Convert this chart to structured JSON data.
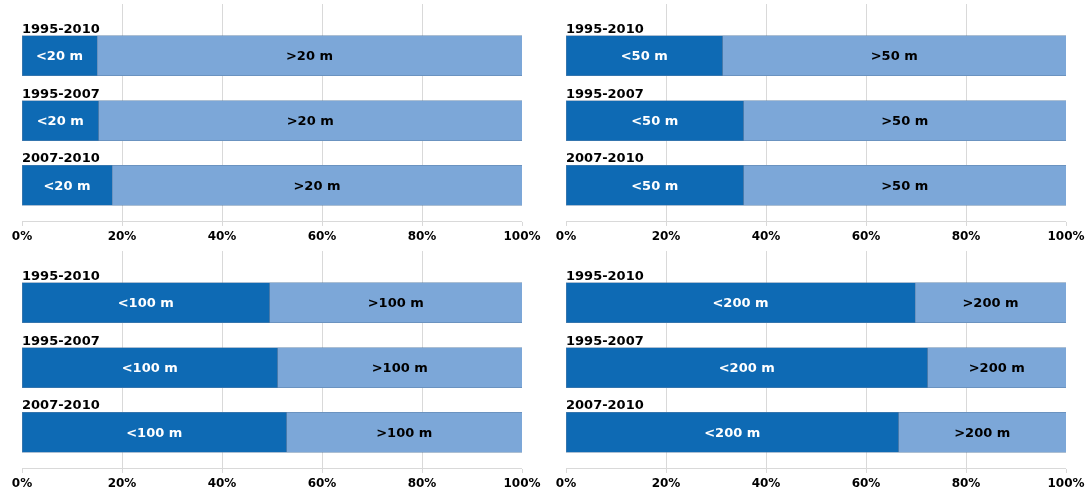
{
  "chart_data": [
    {
      "type": "bar",
      "orientation": "horizontal",
      "stacked": true,
      "categories": [
        "1995-2010",
        "1995-2007",
        "2007-2010"
      ],
      "series": [
        {
          "name": "<20 m",
          "color": "#0e6ab4",
          "values": [
            15,
            15.3,
            18
          ]
        },
        {
          "name": ">20 m",
          "color": "#7ca7d8",
          "values": [
            85,
            84.7,
            82
          ]
        }
      ],
      "xlim": [
        0,
        100
      ],
      "xticks": [
        {
          "value": 0,
          "label": "0%"
        },
        {
          "value": 20,
          "label": "20%"
        },
        {
          "value": 40,
          "label": "40%"
        },
        {
          "value": 60,
          "label": "60%"
        },
        {
          "value": 80,
          "label": "80%"
        },
        {
          "value": 100,
          "label": "100%"
        }
      ],
      "grid": "x"
    },
    {
      "type": "bar",
      "orientation": "horizontal",
      "stacked": true,
      "categories": [
        "1995-2010",
        "1995-2007",
        "2007-2010"
      ],
      "series": [
        {
          "name": "<50 m",
          "color": "#0e6ab4",
          "values": [
            31.3,
            35.5,
            35.5
          ]
        },
        {
          "name": ">50 m",
          "color": "#7ca7d8",
          "values": [
            68.7,
            64.5,
            64.5
          ]
        }
      ],
      "xlim": [
        0,
        100
      ],
      "xticks": [
        {
          "value": 0,
          "label": "0%"
        },
        {
          "value": 20,
          "label": "20%"
        },
        {
          "value": 40,
          "label": "40%"
        },
        {
          "value": 60,
          "label": "60%"
        },
        {
          "value": 80,
          "label": "80%"
        },
        {
          "value": 100,
          "label": "100%"
        }
      ],
      "grid": "x"
    },
    {
      "type": "bar",
      "orientation": "horizontal",
      "stacked": true,
      "categories": [
        "1995-2010",
        "1995-2007",
        "2007-2010"
      ],
      "series": [
        {
          "name": "<100 m",
          "color": "#0e6ab4",
          "values": [
            49.5,
            51.1,
            52.9
          ]
        },
        {
          "name": ">100 m",
          "color": "#7ca7d8",
          "values": [
            50.5,
            48.9,
            47.1
          ]
        }
      ],
      "xlim": [
        0,
        100
      ],
      "xticks": [
        {
          "value": 0,
          "label": "0%"
        },
        {
          "value": 20,
          "label": "20%"
        },
        {
          "value": 40,
          "label": "40%"
        },
        {
          "value": 60,
          "label": "60%"
        },
        {
          "value": 80,
          "label": "80%"
        },
        {
          "value": 100,
          "label": "100%"
        }
      ],
      "grid": "x"
    },
    {
      "type": "bar",
      "orientation": "horizontal",
      "stacked": true,
      "categories": [
        "1995-2010",
        "1995-2007",
        "2007-2010"
      ],
      "series": [
        {
          "name": "<200 m",
          "color": "#0e6ab4",
          "values": [
            69.8,
            72.3,
            66.5
          ]
        },
        {
          "name": ">200 m",
          "color": "#7ca7d8",
          "values": [
            30.2,
            27.7,
            33.5
          ]
        }
      ],
      "xlim": [
        0,
        100
      ],
      "xticks": [
        {
          "value": 0,
          "label": "0%"
        },
        {
          "value": 20,
          "label": "20%"
        },
        {
          "value": 40,
          "label": "40%"
        },
        {
          "value": 60,
          "label": "60%"
        },
        {
          "value": 80,
          "label": "80%"
        },
        {
          "value": 100,
          "label": "100%"
        }
      ],
      "grid": "x"
    }
  ]
}
